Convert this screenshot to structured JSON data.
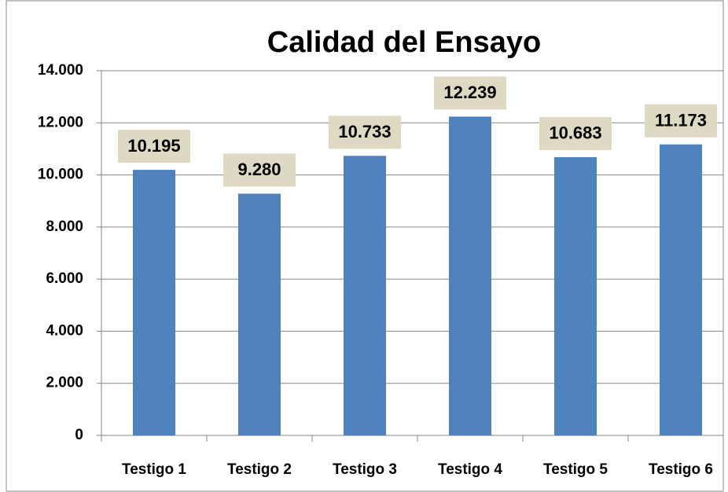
{
  "chart_data": {
    "type": "bar",
    "title": "Calidad del Ensayo",
    "categories": [
      "Testigo 1",
      "Testigo 2",
      "Testigo 3",
      "Testigo 4",
      "Testigo 5",
      "Testigo 6"
    ],
    "values": [
      10195,
      9280,
      10733,
      12239,
      10683,
      11173
    ],
    "value_labels": [
      "10.195",
      "9.280",
      "10.733",
      "12.239",
      "10.683",
      "11.173"
    ],
    "color": "#4f81bd",
    "ylim": [
      0,
      14000
    ],
    "yticks": [
      0,
      {
        "value": 2000,
        "label": "2.000"
      },
      {
        "value": 4000,
        "label": "4.000"
      },
      {
        "value": 6000,
        "label": "6.000"
      },
      {
        "value": 8000,
        "label": "8.000"
      },
      {
        "value": 10000,
        "label": "10.000"
      },
      {
        "value": 12000,
        "label": "12.000"
      },
      {
        "value": 14000,
        "label": "14.000"
      }
    ],
    "grid": true
  }
}
